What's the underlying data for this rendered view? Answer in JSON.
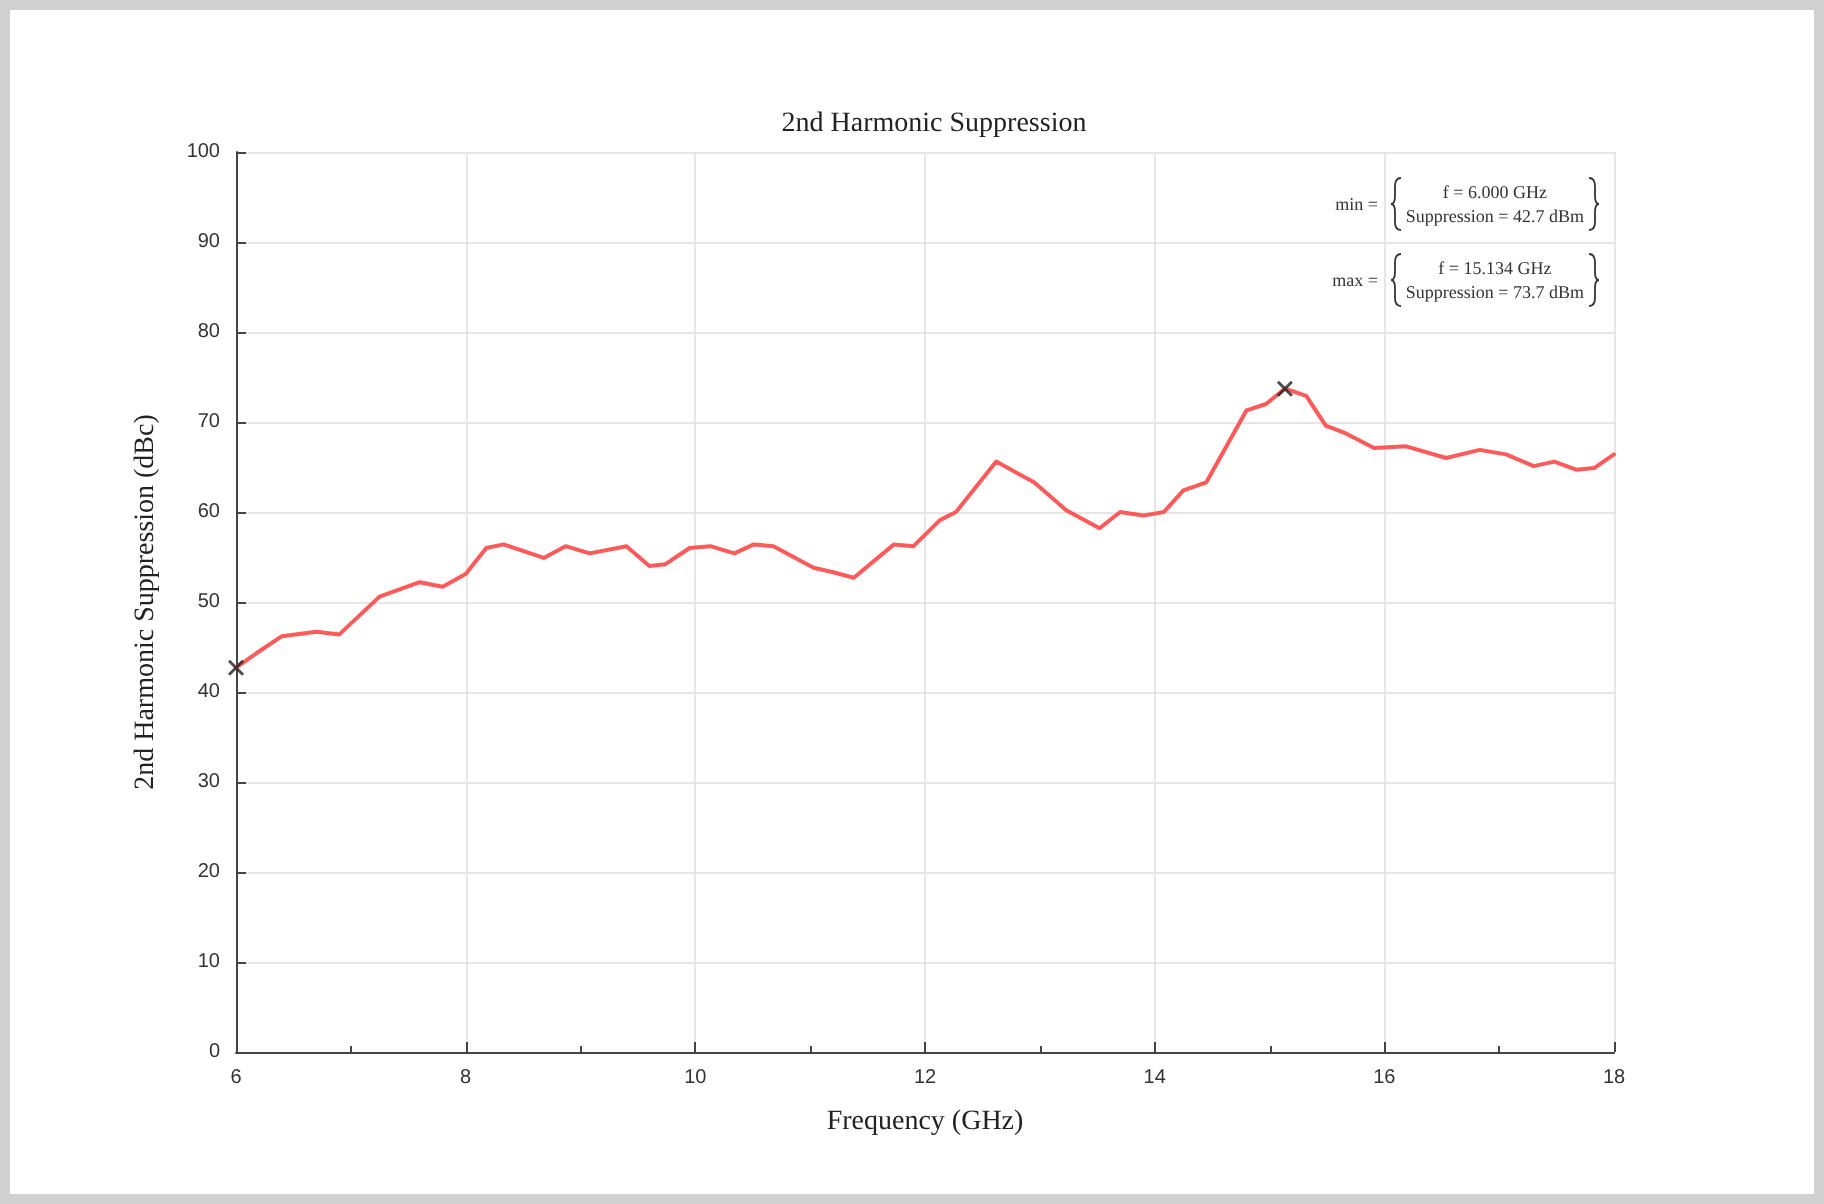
{
  "chart_data": {
    "type": "line",
    "title": "2nd Harmonic Suppression",
    "xlabel": "Frequency (GHz)",
    "ylabel": "2nd Harmonic Suppression (dBc)",
    "xlim": [
      6,
      18
    ],
    "xticks": [
      6,
      8,
      10,
      12,
      14,
      16,
      18
    ],
    "ylim": [
      0,
      100
    ],
    "yticks": [
      0,
      10,
      20,
      30,
      40,
      50,
      60,
      70,
      80,
      90,
      100
    ],
    "grid": true,
    "annotations": [
      "min =",
      "f = 6.000 GHz",
      "Suppression = 42.7 dBm",
      "max =",
      "f = 15.134 GHz",
      "Suppression = 73.7 dBm"
    ],
    "series": [
      {
        "color": "#ff5a5a",
        "marker": "none",
        "line_style": "solid",
        "x": [
          6.0,
          6.2,
          6.4,
          6.7,
          6.9,
          7.25,
          7.6,
          7.8,
          8.0,
          8.18,
          8.33,
          8.68,
          8.87,
          9.08,
          9.4,
          9.6,
          9.74,
          9.95,
          10.13,
          10.34,
          10.51,
          10.68,
          11.03,
          11.2,
          11.38,
          11.73,
          11.9,
          12.13,
          12.27,
          12.62,
          12.95,
          13.23,
          13.52,
          13.7,
          13.9,
          14.08,
          14.25,
          14.45,
          14.8,
          14.97,
          15.134,
          15.32,
          15.49,
          15.67,
          15.91,
          16.19,
          16.54,
          16.83,
          17.06,
          17.3,
          17.48,
          17.67,
          17.83,
          18.0
        ],
        "values": [
          42.7,
          44.5,
          46.2,
          46.7,
          46.4,
          50.6,
          52.2,
          51.7,
          53.1,
          56.0,
          56.4,
          54.9,
          56.2,
          55.4,
          56.2,
          54.0,
          54.2,
          56.0,
          56.2,
          55.4,
          56.4,
          56.2,
          53.8,
          53.3,
          52.7,
          56.4,
          56.2,
          59.1,
          60.0,
          65.6,
          63.3,
          60.2,
          58.2,
          60.0,
          59.6,
          60.0,
          62.4,
          63.3,
          71.3,
          72.0,
          73.7,
          72.9,
          69.6,
          68.7,
          67.1,
          67.3,
          66.0,
          66.9,
          66.4,
          65.1,
          65.6,
          64.7,
          64.9,
          66.4
        ]
      },
      {
        "type": "scatter",
        "color": "#222222",
        "marker": "cross",
        "x": [
          6.0,
          15.134
        ],
        "values": [
          42.7,
          73.7
        ]
      }
    ]
  }
}
